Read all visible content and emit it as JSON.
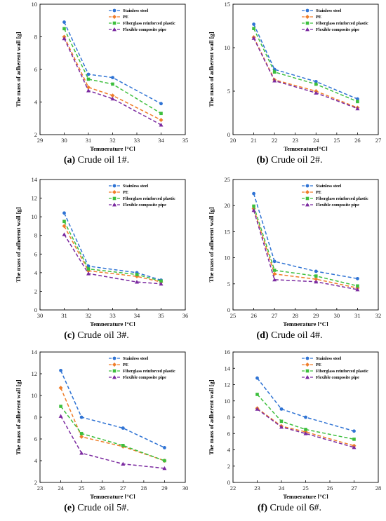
{
  "colors": {
    "Stainless steel": "#2f73d4",
    "PE": "#f07e2a",
    "Fiberglass reinforced plastic": "#3dbf3d",
    "Flexible composite pipe": "#7b2aa0"
  },
  "chart_data": [
    {
      "type": "line",
      "caption_letter": "(a)",
      "caption_text": "Crude oil 1#.",
      "xlabel": "Temperature [°C]",
      "ylabel": "The mass of adherent wall [g]",
      "xlim": [
        29,
        35
      ],
      "ylim": [
        2,
        10
      ],
      "xticks": [
        "29",
        "30",
        "31",
        "32",
        "33",
        "34",
        "35"
      ],
      "yticks": [
        "2",
        "4",
        "6",
        "8",
        "10"
      ],
      "legend_position": "top-right",
      "x": [
        30,
        31,
        32,
        34
      ],
      "series": [
        {
          "name": "Stainless steel",
          "marker": "circle",
          "values": [
            8.9,
            5.7,
            5.5,
            3.9
          ]
        },
        {
          "name": "PE",
          "marker": "diamond",
          "values": [
            8.0,
            4.9,
            4.4,
            2.9
          ]
        },
        {
          "name": "Fiberglass reinforced plastic",
          "marker": "square",
          "values": [
            8.5,
            5.4,
            5.1,
            3.3
          ]
        },
        {
          "name": "Flexible composite pipe",
          "marker": "triangle",
          "values": [
            7.9,
            4.7,
            4.2,
            2.6
          ]
        }
      ]
    },
    {
      "type": "line",
      "caption_letter": "(b)",
      "caption_text": "Crude oil 2#.",
      "xlabel": "Temperature[°C]",
      "ylabel": "The mass of adherent wall [g]",
      "xlim": [
        20,
        27
      ],
      "ylim": [
        0,
        15
      ],
      "xticks": [
        "20",
        "21",
        "22",
        "23",
        "24",
        "25",
        "26",
        "27"
      ],
      "yticks": [
        "0",
        "5",
        "10",
        "15"
      ],
      "legend_position": "top-right",
      "x": [
        21,
        22,
        24,
        26
      ],
      "series": [
        {
          "name": "Stainless steel",
          "marker": "circle",
          "values": [
            12.7,
            7.5,
            6.1,
            4.1
          ]
        },
        {
          "name": "PE",
          "marker": "diamond",
          "values": [
            11.2,
            6.3,
            5.0,
            3.1
          ]
        },
        {
          "name": "Fiberglass reinforced plastic",
          "marker": "square",
          "values": [
            12.2,
            7.2,
            5.8,
            3.8
          ]
        },
        {
          "name": "Flexible composite pipe",
          "marker": "triangle",
          "values": [
            11.1,
            6.2,
            4.8,
            3.0
          ]
        }
      ]
    },
    {
      "type": "line",
      "caption_letter": "(c)",
      "caption_text": "Crude oil 3#.",
      "xlabel": "Temperature [°C]",
      "ylabel": "The mass of adherent wall [g]",
      "xlim": [
        30,
        36
      ],
      "ylim": [
        0,
        14
      ],
      "xticks": [
        "30",
        "31",
        "32",
        "33",
        "34",
        "35",
        "36"
      ],
      "yticks": [
        "0",
        "2",
        "4",
        "6",
        "8",
        "10",
        "12",
        "14"
      ],
      "legend_position": "top-right",
      "x": [
        31,
        32,
        34,
        35
      ],
      "series": [
        {
          "name": "Stainless steel",
          "marker": "circle",
          "values": [
            10.4,
            4.7,
            4.0,
            3.2
          ]
        },
        {
          "name": "PE",
          "marker": "diamond",
          "values": [
            9.0,
            4.2,
            3.6,
            3.0
          ]
        },
        {
          "name": "Fiberglass reinforced plastic",
          "marker": "square",
          "values": [
            9.5,
            4.4,
            3.8,
            3.1
          ]
        },
        {
          "name": "Flexible composite pipe",
          "marker": "triangle",
          "values": [
            8.1,
            3.9,
            3.0,
            2.8
          ]
        }
      ]
    },
    {
      "type": "line",
      "caption_letter": "(d)",
      "caption_text": "Crude oil 4#.",
      "xlabel": "Temperature [°C]",
      "ylabel": "The mass of adherent wall [g]",
      "xlim": [
        25,
        32
      ],
      "ylim": [
        0,
        25
      ],
      "xticks": [
        "25",
        "26",
        "27",
        "28",
        "29",
        "30",
        "31",
        "32"
      ],
      "yticks": [
        "0",
        "5",
        "10",
        "15",
        "20",
        "25"
      ],
      "legend_position": "top-right",
      "x": [
        26,
        27,
        29,
        31
      ],
      "series": [
        {
          "name": "Stainless steel",
          "marker": "circle",
          "values": [
            22.3,
            9.3,
            7.4,
            6.0
          ]
        },
        {
          "name": "PE",
          "marker": "diamond",
          "values": [
            19.4,
            6.9,
            5.9,
            4.2
          ]
        },
        {
          "name": "Fiberglass reinforced plastic",
          "marker": "square",
          "values": [
            19.9,
            7.6,
            6.5,
            4.6
          ]
        },
        {
          "name": "Flexible composite pipe",
          "marker": "triangle",
          "values": [
            19.1,
            5.8,
            5.4,
            3.9
          ]
        }
      ]
    },
    {
      "type": "line",
      "caption_letter": "(e)",
      "caption_text": "Crude oil 5#.",
      "xlabel": "Temperature [°C]",
      "ylabel": "The mass of adherent wall [g]",
      "xlim": [
        23,
        30
      ],
      "ylim": [
        2,
        14
      ],
      "xticks": [
        "23",
        "24",
        "25",
        "26",
        "27",
        "28",
        "29",
        "30"
      ],
      "yticks": [
        "2",
        "4",
        "6",
        "8",
        "10",
        "12",
        "14"
      ],
      "legend_position": "top-right",
      "x": [
        24,
        25,
        27,
        29
      ],
      "series": [
        {
          "name": "Stainless steel",
          "marker": "circle",
          "values": [
            12.3,
            8.0,
            7.0,
            5.2
          ]
        },
        {
          "name": "PE",
          "marker": "diamond",
          "values": [
            10.7,
            6.2,
            5.3,
            4.0
          ]
        },
        {
          "name": "Fiberglass reinforced plastic",
          "marker": "square",
          "values": [
            9.0,
            6.5,
            5.4,
            4.0
          ]
        },
        {
          "name": "Flexible composite pipe",
          "marker": "triangle",
          "values": [
            8.1,
            4.7,
            3.7,
            3.3
          ]
        }
      ]
    },
    {
      "type": "line",
      "caption_letter": "(f)",
      "caption_text": "Crude oil 6#.",
      "xlabel": "Temperature [°C]",
      "ylabel": "The mass of adherent wall [g]",
      "xlim": [
        22,
        28
      ],
      "ylim": [
        0,
        16
      ],
      "xticks": [
        "22",
        "23",
        "24",
        "25",
        "26",
        "27",
        "28"
      ],
      "yticks": [
        "0",
        "2",
        "4",
        "6",
        "8",
        "10",
        "12",
        "14",
        "16"
      ],
      "legend_position": "top-right",
      "x": [
        23,
        24,
        25,
        27
      ],
      "series": [
        {
          "name": "Stainless steel",
          "marker": "circle",
          "values": [
            12.8,
            9.0,
            8.0,
            6.3
          ]
        },
        {
          "name": "PE",
          "marker": "diamond",
          "values": [
            9.1,
            6.9,
            6.2,
            4.5
          ]
        },
        {
          "name": "Fiberglass reinforced plastic",
          "marker": "square",
          "values": [
            10.8,
            7.5,
            6.5,
            5.3
          ]
        },
        {
          "name": "Flexible composite pipe",
          "marker": "triangle",
          "values": [
            9.0,
            6.8,
            6.0,
            4.3
          ]
        }
      ]
    }
  ]
}
